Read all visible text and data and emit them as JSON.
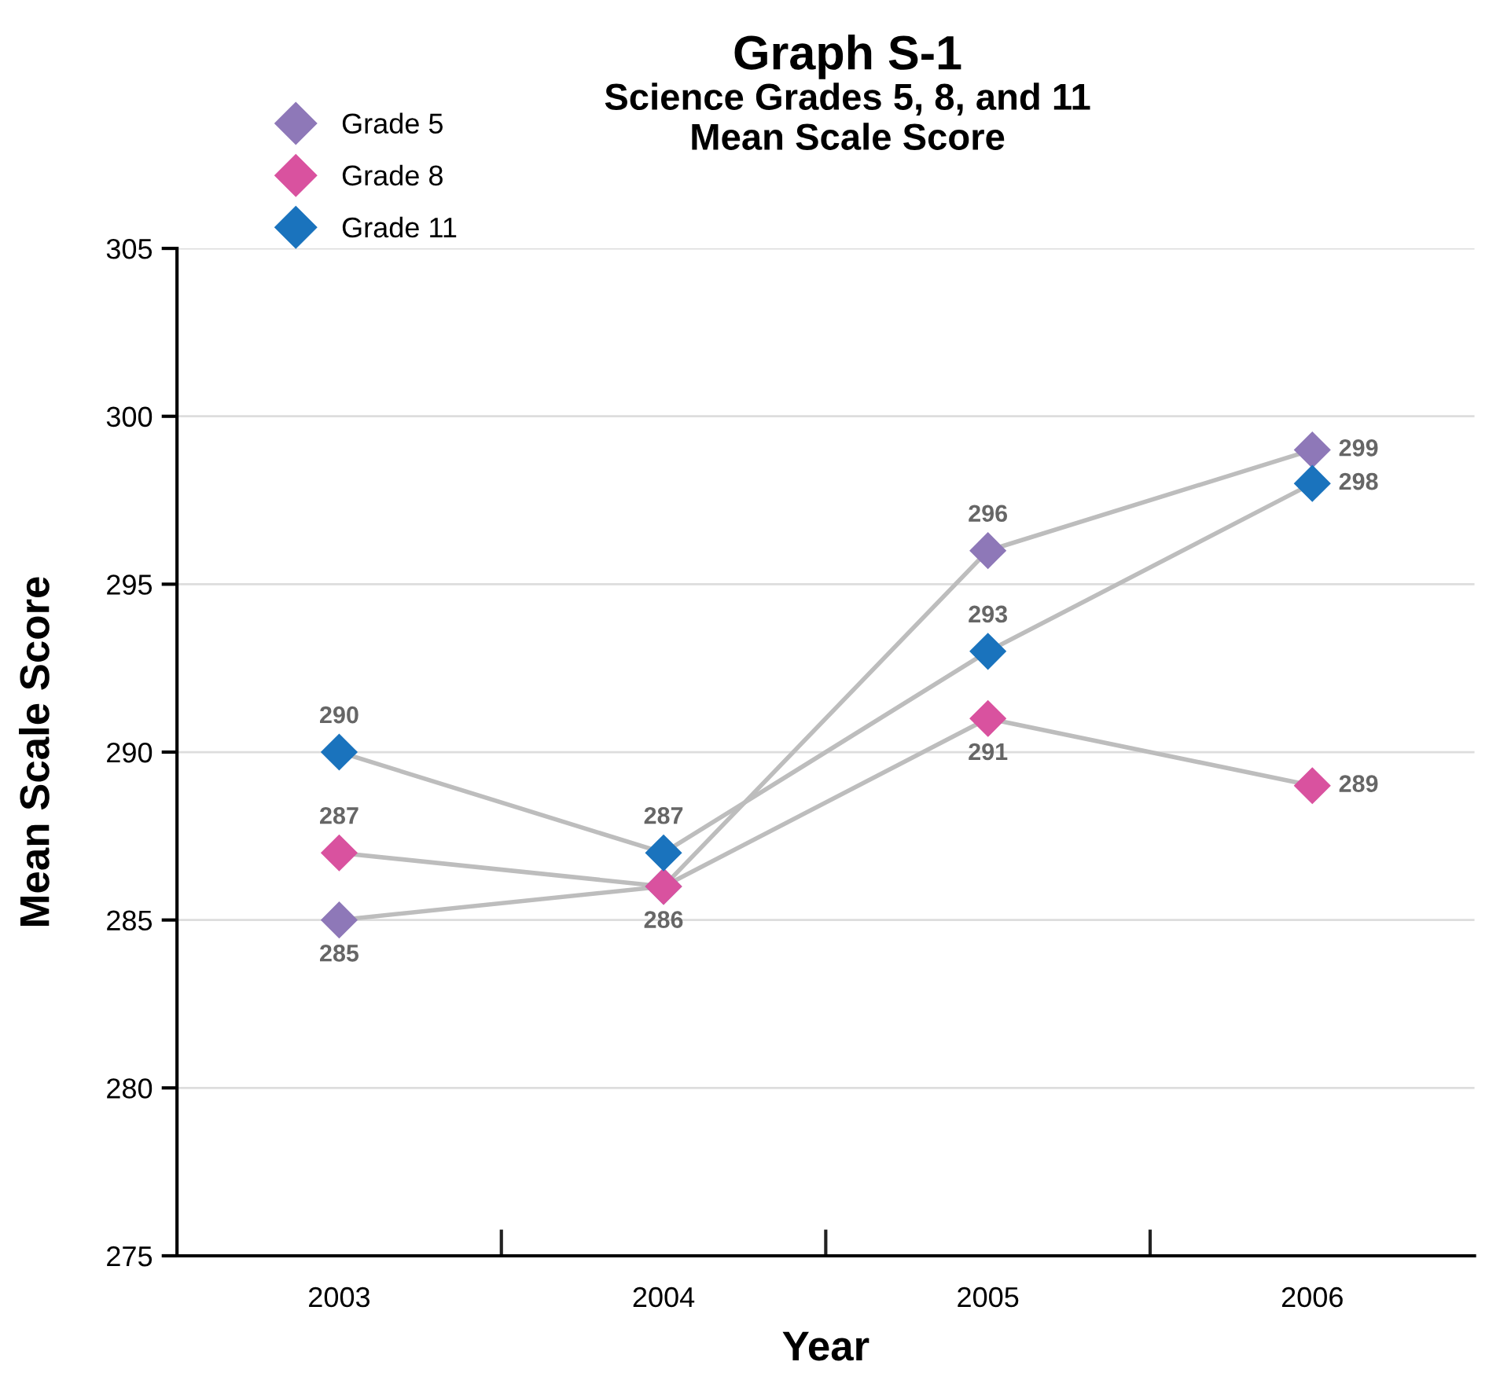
{
  "chart_data": {
    "type": "line",
    "title": "Graph S-1",
    "subtitle": "Science Grades 5, 8, and 11\nMean Scale Score",
    "xlabel": "Year",
    "ylabel": "Mean Scale Score",
    "categories": [
      "2003",
      "2004",
      "2005",
      "2006"
    ],
    "series": [
      {
        "name": "Grade 5",
        "color": "#8e78b8",
        "values": [
          285,
          286,
          296,
          299
        ],
        "value_labels": [
          "285",
          "286",
          "296",
          "299"
        ]
      },
      {
        "name": "Grade 8",
        "color": "#d9529f",
        "values": [
          287,
          286,
          291,
          289
        ],
        "value_labels": [
          "287",
          null,
          "291",
          "289"
        ]
      },
      {
        "name": "Grade 11",
        "color": "#1a73bd",
        "values": [
          290,
          287,
          293,
          298
        ],
        "value_labels": [
          "290",
          "287",
          "293",
          "298"
        ]
      }
    ],
    "ylim": [
      275,
      305
    ],
    "yticks": [
      275,
      280,
      285,
      290,
      295,
      300,
      305
    ],
    "grid": "y",
    "legend": "top left",
    "marker": "diamond",
    "line_style": "solid"
  }
}
